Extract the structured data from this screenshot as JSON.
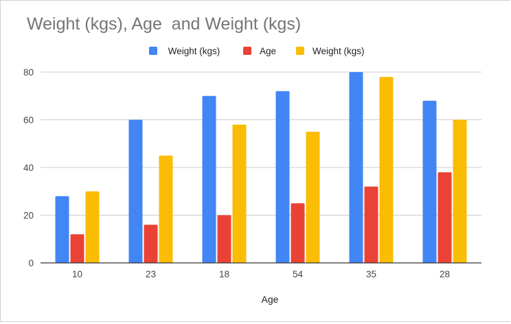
{
  "chart_data": {
    "type": "bar",
    "title": "Weight (kgs), Age  and Weight (kgs)",
    "xlabel": "Age",
    "ylabel": "",
    "categories": [
      "10",
      "23",
      "18",
      "54",
      "35",
      "28"
    ],
    "series": [
      {
        "name": " Weight (kgs)",
        "color": "#4285f4",
        "values": [
          28,
          60,
          70,
          72,
          80,
          68
        ]
      },
      {
        "name": "Age",
        "color": "#ea4335",
        "values": [
          12,
          16,
          20,
          25,
          32,
          38
        ]
      },
      {
        "name": "Weight (kgs)",
        "color": "#fbbc04",
        "values": [
          30,
          45,
          58,
          55,
          78,
          60
        ]
      }
    ],
    "ylim": [
      0,
      80
    ],
    "yticks": [
      "0",
      "20",
      "40",
      "60",
      "80"
    ],
    "grid": true,
    "legend_position": "top"
  }
}
